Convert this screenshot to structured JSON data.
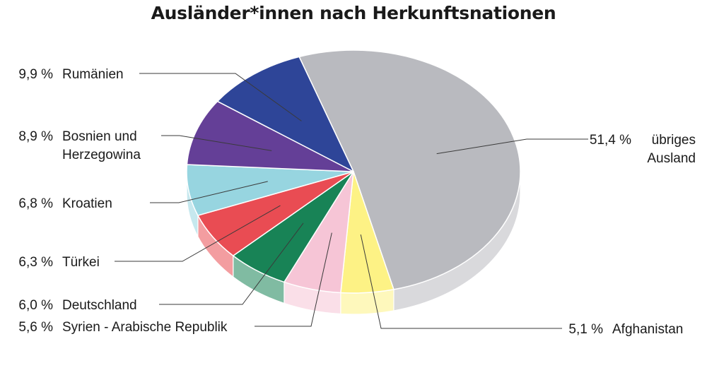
{
  "chart_data": {
    "type": "pie",
    "title": "Ausländer*innen nach Herkunftsnationen",
    "slices": [
      {
        "pct_label": "51,4 %",
        "label_lines": [
          "übriges",
          "Ausland"
        ],
        "value": 51.4,
        "color": "#b9babf"
      },
      {
        "pct_label": "5,1 %",
        "label_lines": [
          "Afghanistan"
        ],
        "value": 5.1,
        "color": "#fdf285"
      },
      {
        "pct_label": "5,6 %",
        "label_lines": [
          "Syrien - Arabische Republik"
        ],
        "value": 5.6,
        "color": "#f6c5d6"
      },
      {
        "pct_label": "6,0 %",
        "label_lines": [
          "Deutschland"
        ],
        "value": 6.0,
        "color": "#188356"
      },
      {
        "pct_label": "6,3 %",
        "label_lines": [
          "Türkei"
        ],
        "value": 6.3,
        "color": "#e94c53"
      },
      {
        "pct_label": "6,8 %",
        "label_lines": [
          "Kroatien"
        ],
        "value": 6.8,
        "color": "#97d5e0"
      },
      {
        "pct_label": "8,9 %",
        "label_lines": [
          "Bosnien und",
          "Herzegowina"
        ],
        "value": 8.9,
        "color": "#643f97"
      },
      {
        "pct_label": "9,9 %",
        "label_lines": [
          "Rumänien"
        ],
        "value": 9.9,
        "color": "#2e4598"
      }
    ]
  }
}
